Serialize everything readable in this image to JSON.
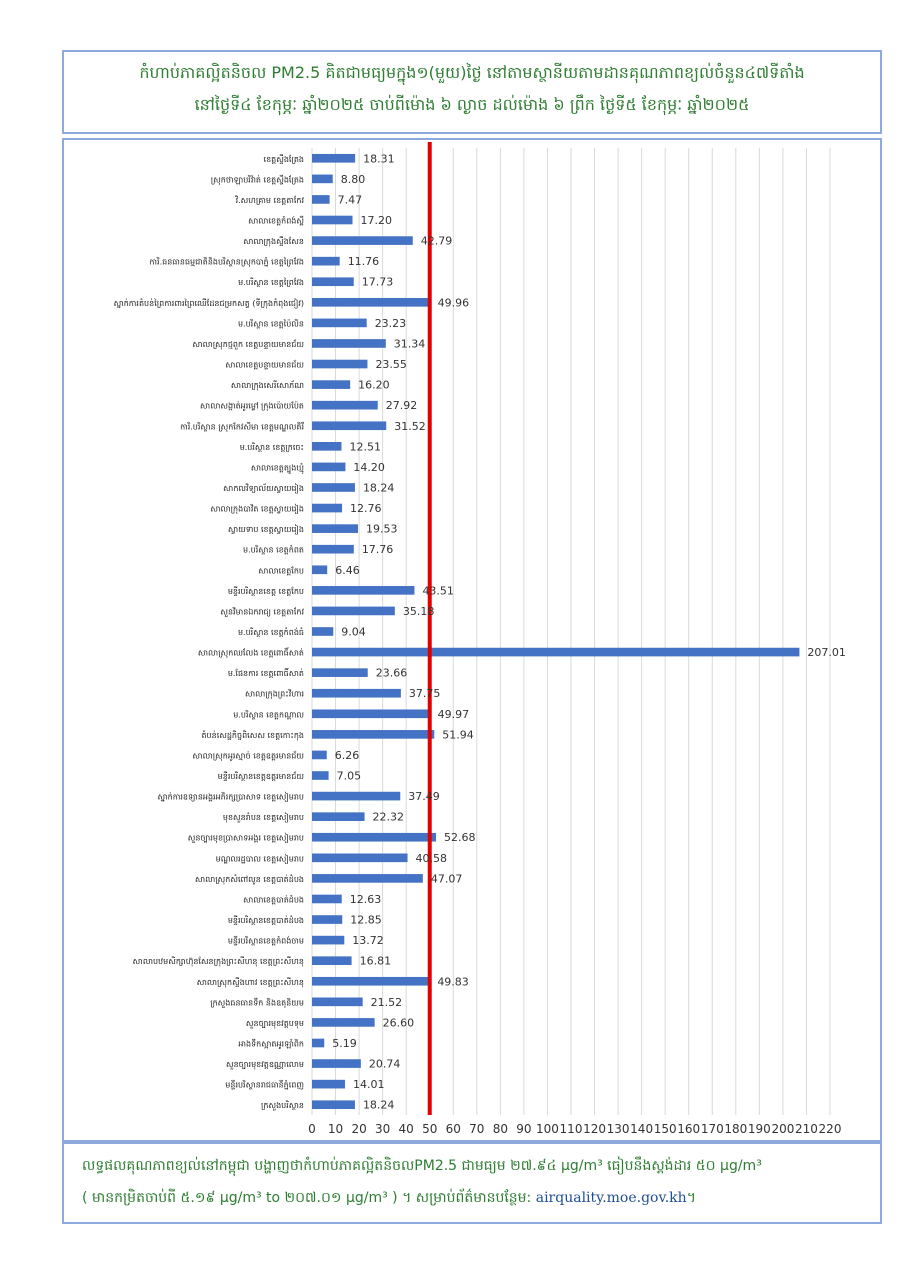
{
  "title": {
    "line1": "កំហាប់ភាគល្អិតនិចល PM2.5 គិតជាមធ្យមក្នុង១(មួយ)ថ្ងៃ នៅតាមស្ថានីយតាមដានគុណភាពខ្យល់ចំនួន៤៧ទីតាំង",
    "line2": "នៅថ្ងៃទី៤ ខែកុម្ភៈ ឆ្នាំ២០២៥ ចាប់ពីម៉ោង ៦ ល្ងាច ដល់ម៉ោង ៦ ព្រឹក ថ្ងៃទី៥ ខែកុម្ភៈ ឆ្នាំ២០២៥"
  },
  "footer": {
    "line1": "លទ្ធផលគុណភាពខ្យល់នៅកម្ពុជា បង្ហាញថាកំហាប់ភាគល្អិតនិចលPM2.5 ជាមធ្យម ២៧.៩៤ µg/m³ ធៀបនឹងស្តង់ដារ ៥០ µg/m³",
    "line2_prefix": "( មានកម្រិតចាប់ពី ៥.១៩ µg/m³ to ២០៧.០១ µg/m³ ) ។ សម្រាប់ព័ត៌មានបន្ថែម: ",
    "link": "airquality.moe.gov.kh",
    "line2_suffix": "។"
  },
  "colors": {
    "bar": "#4472c4",
    "threshold": "#e00000",
    "text_green": "#2e7d32",
    "border": "#8ea9db"
  },
  "chart_data": {
    "type": "bar",
    "orientation": "horizontal",
    "xlim": [
      0,
      220
    ],
    "xticks": [
      0,
      10,
      20,
      30,
      40,
      50,
      60,
      70,
      80,
      90,
      100,
      110,
      120,
      130,
      140,
      150,
      160,
      170,
      180,
      190,
      200,
      210,
      220
    ],
    "threshold": 50,
    "grid": true,
    "categories": [
      "ខេត្តស្ទឹងត្រែង",
      "ស្រុកថាឡាបរិវ៉ាត់ ខេត្តស្ទឹងត្រែង",
      "វិ.សហគ្រាម ខេត្តតាកែវ",
      "សាលាខេត្តកំពង់ស្ពឺ",
      "សាលាក្រុងស្ទឹងសែន",
      "ការិ.ធនធានធម្មជាតិនិងបរិស្ថានស្រុកបាភ្នំ ខេត្តព្រៃវែង",
      "ម.បរិស្ថាន ខេត្តព្រៃវែង",
      "ស្នាក់ការតំបន់ព្រៃការពារព្រៃឈើដែនជម្រកសត្វ (ទីក្រុងកំពុងជៀវ)",
      "ម.បរិស្ថាន ខេត្តប៉ៃលិន",
      "សាលាស្រុកថ្មពួក ខេត្តបន្ទាយមានជ័យ",
      "សាលាខេត្តបន្ទាយមានជ័យ",
      "សាលាក្រុងសេរីសោភ័ណ",
      "សាលាសង្កាត់អូរម្លៅ ក្រុងប៉ោយប៉ែត",
      "ការិ.បរិស្ថាន ស្រុកកែវសីមា ខេត្តមណ្ឌលគិរី",
      "ម.បរិស្ថាន ខេត្តក្រចេះ",
      "សាលាខេត្តត្បូងឃ្មុំ",
      "សាកលវិទ្យាល័យស្វាយរៀង",
      "សាលាក្រុងបាវិត ខេត្តស្វាយរៀង",
      "ស្វាយទាប ខេត្តស្វាយរៀង",
      "ម.បរិស្ថាន ខេត្តកំពត",
      "សាលាខេត្តកែប",
      "មន្ទីរបរិស្ថានខេត្ត ខេត្តកែប",
      "សួនវិមានឯករាជ្យ ខេត្តតាកែវ",
      "ម.បរិស្ថាន ខេត្តកំពង់ធំ",
      "សាលាស្រុកឈលែង ខេត្តពោធិ៍សាត់",
      "ម.ផែនការ ខេត្តពោធិ៍សាត់",
      "សាលាក្រុងព្រះវិហារ",
      "ម.បរិស្ថាន ខេត្តកណ្ដាល",
      "តំបន់សេដ្ឋកិច្ចពិសេស ខេត្តកោះកុង",
      "សាលាស្រុកអូរស្មាច់ ខេត្តឧត្តរមានជ័យ",
      "មន្ទីរបរិស្ថានខេត្តឧត្តរមានជ័យ",
      "ស្នាក់ការឧទ្យានអង្គរអភិរក្សប្រាសាទ ខេត្តសៀមរាប",
      "មុខសួនរាំបន ខេត្តសៀមរាប",
      "សួនច្បារមុខប្រាសាទអង្គរ ខេត្តសៀមរាប",
      "មណ្ឌលរដ្ឋបាល ខេត្តសៀមរាប",
      "សាលាស្រុកសំពៅលូន ខេត្តបាត់ដំបង",
      "សាលាខេត្តបាត់ដំបង",
      "មន្ទីរបរិស្ថានខេត្តបាត់ដំបង",
      "មន្ទីរបរិស្ថានខេត្តកំពង់ចាម",
      "សាលាបឋមសិក្សាហ៊ុនសែនក្រុងព្រះសីហនុ ខេត្តព្រះសីហនុ",
      "សាលាស្រុកស្ទឹងហាវ ខេត្តព្រះសីហនុ",
      "ក្រសួងធនធានទឹក និងឧតុនិយម",
      "សួនច្បារមុខវត្តបទុម",
      "អាងទឹកស្អាតអូរឡាំពិក",
      "សួនច្បារមុខវត្តឧណ្ណាលោម",
      "មន្ទីរបរិស្ថានរាជធានីភ្នំពេញ",
      "ក្រសួងបរិស្ថាន"
    ],
    "values": [
      18.31,
      8.8,
      7.47,
      17.2,
      42.79,
      11.76,
      17.73,
      49.96,
      23.23,
      31.34,
      23.55,
      16.2,
      27.92,
      31.52,
      12.51,
      14.2,
      18.24,
      12.76,
      19.53,
      17.76,
      6.46,
      43.51,
      35.18,
      9.04,
      207.01,
      23.66,
      37.75,
      49.97,
      51.94,
      6.26,
      7.05,
      37.49,
      22.32,
      52.68,
      40.58,
      47.07,
      12.63,
      12.85,
      13.72,
      16.81,
      49.83,
      21.52,
      26.6,
      5.19,
      20.74,
      14.01,
      18.24
    ]
  }
}
